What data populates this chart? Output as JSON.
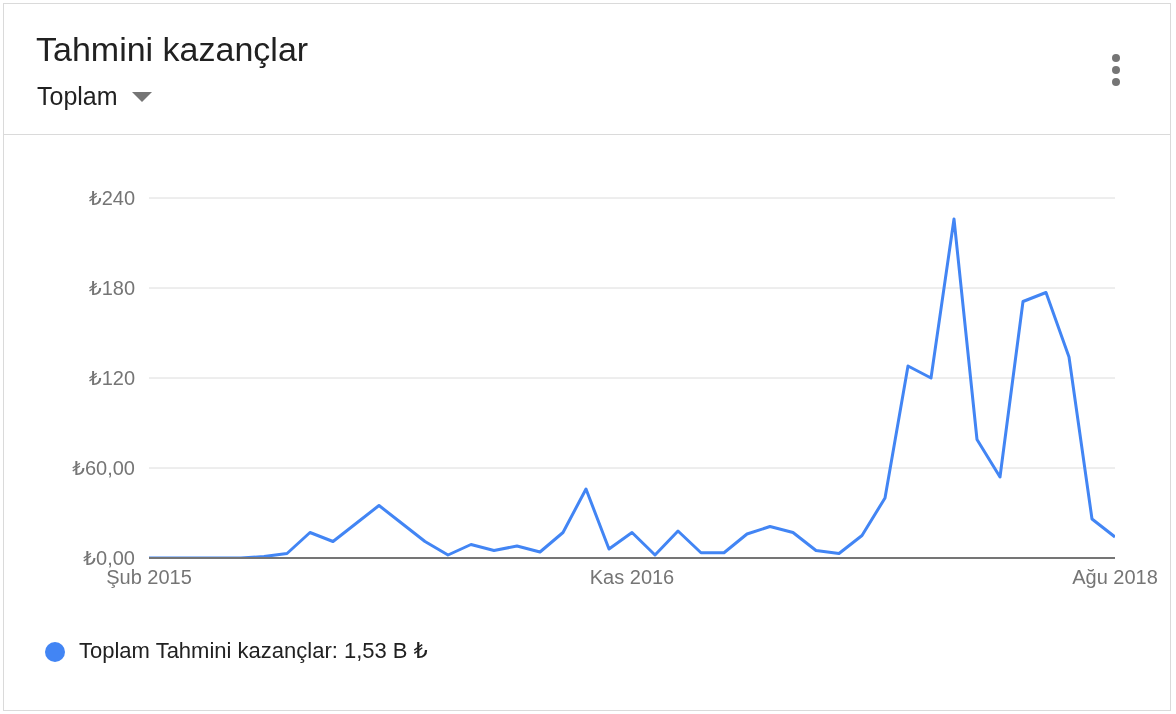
{
  "chart_data": {
    "type": "line",
    "title": "Tahmini kazançlar",
    "subtitle": "Toplam",
    "x": [
      "2015-02",
      "2015-03",
      "2015-04",
      "2015-05",
      "2015-06",
      "2015-07",
      "2015-08",
      "2015-09",
      "2015-10",
      "2015-11",
      "2015-12",
      "2016-01",
      "2016-02",
      "2016-03",
      "2016-04",
      "2016-05",
      "2016-06",
      "2016-07",
      "2016-08",
      "2016-09",
      "2016-10",
      "2016-11",
      "2016-12",
      "2017-01",
      "2017-02",
      "2017-03",
      "2017-04",
      "2017-05",
      "2017-06",
      "2017-07",
      "2017-08",
      "2017-09",
      "2017-10",
      "2017-11",
      "2017-12",
      "2018-01",
      "2018-02",
      "2018-03",
      "2018-04",
      "2018-05",
      "2018-06",
      "2018-07",
      "2018-08"
    ],
    "series": [
      {
        "name": "Toplam Tahmini kazançlar: 1,53 B ₺",
        "color": "#4285f4",
        "values": [
          0,
          0,
          0,
          0,
          0,
          1,
          3,
          17,
          11,
          23,
          35,
          23,
          11,
          2,
          9,
          5,
          8,
          4,
          17,
          46,
          6,
          17,
          2,
          18,
          3.5,
          3.5,
          16,
          21,
          17,
          5,
          3,
          15,
          40,
          128,
          120,
          226,
          79,
          54,
          171,
          177,
          134,
          26,
          14
        ]
      }
    ],
    "xlim": [
      "2015-02",
      "2018-08"
    ],
    "xticks": [
      {
        "value": "2015-02",
        "label": "Şub 2015"
      },
      {
        "value": "2016-11",
        "label": "Kas 2016"
      },
      {
        "value": "2018-08",
        "label": "Ağu 2018"
      }
    ],
    "ylim": [
      0,
      240
    ],
    "yticks": [
      {
        "value": 0,
        "label": "₺0,00"
      },
      {
        "value": 60,
        "label": "₺60,00"
      },
      {
        "value": 120,
        "label": "₺120"
      },
      {
        "value": 180,
        "label": "₺180"
      },
      {
        "value": 240,
        "label": "₺240"
      }
    ],
    "grid": "y",
    "legend": "bottom left",
    "marker": "none",
    "line_style": "solid"
  }
}
